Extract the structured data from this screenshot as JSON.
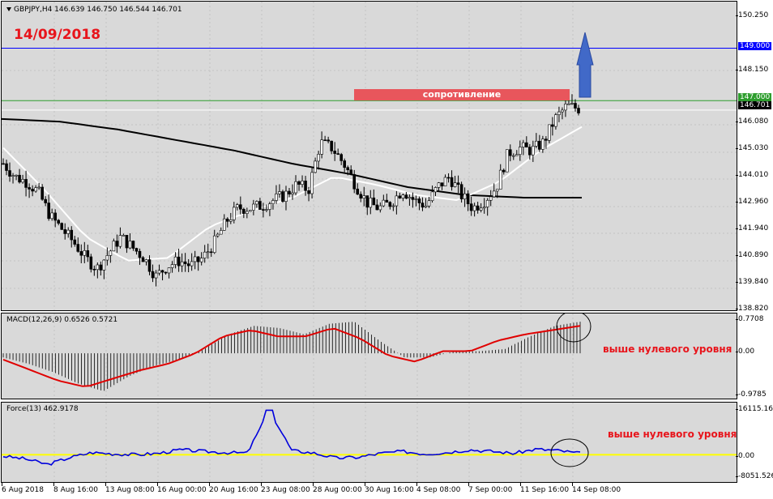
{
  "chart": {
    "symbol_line": "GBPJPY,H4  146.639 146.750 146.544 146.701",
    "date_label": "14/09/2018",
    "resistance_label": "сопротивление",
    "macd_label": "MACD(12,26,9) 0.6526 0.5721",
    "force_label": "Force(13) 462.9178",
    "macd_annotation": "выше нулевого уровня",
    "force_annotation": "выше нулевого уровня",
    "colors": {
      "resistance_box": "#e8565c",
      "annotation": "#e8141b",
      "arrow": "#4169c8",
      "level_149": "#0000ff",
      "level_147": "#2e9e2e",
      "macd_signal": "#e00000",
      "force_line": "#0000dd",
      "zero_line": "#ffff00"
    }
  },
  "price_axis": {
    "ticks": [
      "150.250",
      "148.150",
      "146.080",
      "145.030",
      "144.010",
      "142.960",
      "141.940",
      "140.890",
      "139.840",
      "138.820"
    ],
    "tag_149": "149.000",
    "tag_147": "147.000",
    "tag_current": "146.701"
  },
  "macd_axis": {
    "ticks": [
      "0.7708",
      "0.00",
      "-0.9785"
    ]
  },
  "force_axis": {
    "ticks": [
      "16115.16",
      "0.00",
      "-8051.526"
    ]
  },
  "time_axis": {
    "labels": [
      "6 Aug 2018",
      "8 Aug 16:00",
      "13 Aug 08:00",
      "16 Aug 00:00",
      "20 Aug 16:00",
      "23 Aug 08:00",
      "28 Aug 00:00",
      "30 Aug 16:00",
      "4 Sep 08:00",
      "7 Sep 00:00",
      "11 Sep 16:00",
      "14 Sep 08:00"
    ]
  },
  "chart_data": {
    "type": "candlestick",
    "symbol": "GBPJPY",
    "timeframe": "H4",
    "ohlc_last": {
      "open": 146.639,
      "high": 146.75,
      "low": 146.544,
      "close": 146.701
    },
    "levels": [
      149.0,
      147.0
    ],
    "current_price": 146.701,
    "price_path": [
      144.6,
      144.1,
      143.9,
      143.5,
      142.6,
      142.1,
      141.6,
      141.0,
      140.6,
      141.2,
      141.8,
      141.4,
      141.0,
      140.3,
      140.7,
      140.9,
      140.7,
      141.0,
      141.6,
      142.4,
      142.9,
      142.9,
      143.0,
      143.2,
      143.4,
      143.8,
      143.6,
      145.4,
      145.2,
      144.6,
      143.8,
      143.1,
      142.9,
      143.1,
      143.6,
      143.2,
      143.0,
      143.7,
      144.1,
      143.4,
      142.9,
      143.2,
      143.7,
      145.0,
      145.2,
      145.1,
      145.4,
      146.3,
      146.8,
      146.7
    ],
    "ma_black": [
      146.3,
      146.2,
      145.9,
      145.5,
      145.1,
      144.6,
      144.2,
      143.7,
      143.4,
      143.3,
      143.3
    ],
    "ma_white": [
      145.2,
      143.6,
      141.8,
      140.9,
      141.0,
      142.2,
      142.8,
      143.3,
      144.1,
      143.8,
      143.4,
      143.2,
      143.9,
      145.1,
      146.0
    ],
    "macd_hist": [
      -0.1,
      -0.25,
      -0.45,
      -0.72,
      -0.9,
      -0.55,
      -0.3,
      -0.15,
      0.1,
      0.45,
      0.65,
      0.6,
      0.45,
      0.7,
      0.75,
      0.3,
      -0.1,
      -0.1,
      0.05,
      0.05,
      0.1,
      0.4,
      0.65,
      0.75
    ],
    "macd_signal": [
      -0.15,
      -0.4,
      -0.65,
      -0.8,
      -0.6,
      -0.4,
      -0.25,
      0.0,
      0.4,
      0.55,
      0.4,
      0.4,
      0.6,
      0.35,
      -0.05,
      -0.2,
      0.05,
      0.05,
      0.3,
      0.45,
      0.55,
      0.65
    ],
    "force_values": [
      -500,
      -1500,
      -3500,
      -1000,
      800,
      300,
      0,
      500,
      1800,
      1200,
      800,
      600,
      16000,
      1500,
      600,
      -1200,
      -900,
      500,
      1200,
      300,
      800,
      1800,
      1200,
      500,
      2000,
      1500,
      463
    ]
  }
}
